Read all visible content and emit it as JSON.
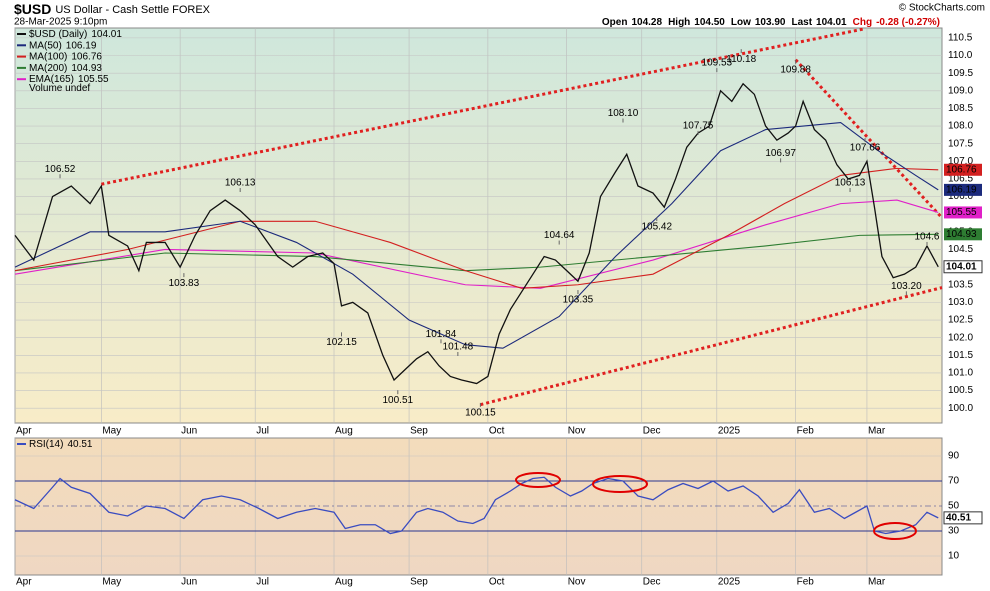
{
  "chart_data": [
    {
      "type": "line",
      "title": "$USD",
      "subtitle": "US Dollar - Cash Settle FOREX",
      "date": "28-Mar-2025 9:10pm",
      "source": "© StockCharts.com",
      "quote": [
        {
          "label": "Open",
          "value": "104.28"
        },
        {
          "label": "High",
          "value": "104.50"
        },
        {
          "label": "Low",
          "value": "103.90"
        },
        {
          "label": "Last",
          "value": "104.01"
        },
        {
          "label": "Chg",
          "value": "-0.28 (-0.27%)"
        }
      ],
      "volume_label": "Volume undef",
      "xlim": [
        0,
        247
      ],
      "xticks": [
        {
          "value": 0,
          "label": "Apr"
        },
        {
          "value": 23,
          "label": "May"
        },
        {
          "value": 44,
          "label": "Jun"
        },
        {
          "value": 64,
          "label": "Jul"
        },
        {
          "value": 85,
          "label": "Aug"
        },
        {
          "value": 105,
          "label": "Sep"
        },
        {
          "value": 126,
          "label": "Oct"
        },
        {
          "value": 147,
          "label": "Nov"
        },
        {
          "value": 167,
          "label": "Dec"
        },
        {
          "value": 187,
          "label": "2025"
        },
        {
          "value": 208,
          "label": "Feb"
        },
        {
          "value": 227,
          "label": "Mar"
        }
      ],
      "ylim": [
        99.58,
        110.78
      ],
      "yticks": [
        {
          "value": 100,
          "label": "100.0"
        },
        100.5,
        {
          "value": 101,
          "label": "101.0"
        },
        101.5,
        {
          "value": 102,
          "label": "102.0"
        },
        102.5,
        {
          "value": 103,
          "label": "103.0"
        },
        103.5,
        {
          "value": 104,
          "label": "104.0"
        },
        104.5,
        {
          "value": 105,
          "label": "105.0"
        },
        105.5,
        {
          "value": 106,
          "label": "106.0"
        },
        106.5,
        {
          "value": 107,
          "label": "107.0"
        },
        107.5,
        {
          "value": 108,
          "label": "108.0"
        },
        108.5,
        {
          "value": 109,
          "label": "109.0"
        },
        109.5,
        {
          "value": 110,
          "label": "110.0"
        },
        110.5
      ],
      "grid": true,
      "series": [
        {
          "name": "$USD (Daily)",
          "last": 104.01,
          "color": "#111111",
          "x": [
            0,
            5,
            10,
            15,
            20,
            23,
            25,
            30,
            33,
            35,
            40,
            44,
            48,
            52,
            56,
            60,
            64,
            66,
            70,
            74,
            78,
            82,
            85,
            87,
            90,
            94,
            98,
            101,
            104,
            107,
            110,
            113,
            116,
            119,
            123,
            126,
            129,
            132,
            135,
            138,
            141,
            144,
            147,
            150,
            153,
            156,
            160,
            163,
            166,
            170,
            173,
            176,
            179,
            182,
            185,
            188,
            191,
            194,
            197,
            200,
            203,
            206,
            208,
            210,
            213,
            216,
            219,
            222,
            225,
            227,
            229,
            231,
            234,
            237,
            240,
            243,
            246
          ],
          "values": [
            104.9,
            104.2,
            106.0,
            106.3,
            105.8,
            106.3,
            104.9,
            104.6,
            103.9,
            104.7,
            104.7,
            104.0,
            104.9,
            105.6,
            105.9,
            105.6,
            105.2,
            104.9,
            104.3,
            104.0,
            104.3,
            104.4,
            104.1,
            102.9,
            103.0,
            102.7,
            101.5,
            100.8,
            101.1,
            101.4,
            101.6,
            101.2,
            100.9,
            100.8,
            100.7,
            100.9,
            102.1,
            102.8,
            103.3,
            103.8,
            104.3,
            104.2,
            103.9,
            103.6,
            104.4,
            106.0,
            106.7,
            107.2,
            106.3,
            106.1,
            105.7,
            106.5,
            107.4,
            107.8,
            108.0,
            109.0,
            108.7,
            109.2,
            108.9,
            108.0,
            107.6,
            107.8,
            108.0,
            108.7,
            107.9,
            107.6,
            106.9,
            106.5,
            106.6,
            107.0,
            105.7,
            104.3,
            103.7,
            103.8,
            104.0,
            104.6,
            104.01
          ]
        },
        {
          "name": "MA(50)",
          "last": 106.19,
          "color": "#1c2a7c",
          "x": [
            0,
            20,
            40,
            60,
            75,
            90,
            105,
            120,
            130,
            145,
            160,
            175,
            188,
            200,
            210,
            220,
            230,
            240,
            246
          ],
          "values": [
            104.0,
            105.0,
            105.0,
            105.3,
            104.7,
            103.8,
            102.5,
            101.8,
            101.7,
            102.6,
            104.3,
            105.8,
            107.3,
            107.9,
            108.0,
            108.1,
            107.3,
            106.6,
            106.19
          ]
        },
        {
          "name": "MA(100)",
          "last": 106.76,
          "color": "#d32020",
          "x": [
            0,
            30,
            60,
            80,
            100,
            120,
            135,
            150,
            170,
            190,
            205,
            220,
            235,
            246
          ],
          "values": [
            103.9,
            104.5,
            105.3,
            105.3,
            104.7,
            103.9,
            103.4,
            103.5,
            103.8,
            104.9,
            105.8,
            106.6,
            106.8,
            106.76
          ]
        },
        {
          "name": "MA(200)",
          "last": 104.93,
          "color": "#2e7d32",
          "x": [
            0,
            40,
            80,
            120,
            140,
            170,
            200,
            225,
            246
          ],
          "values": [
            103.9,
            104.4,
            104.3,
            103.9,
            104.0,
            104.3,
            104.6,
            104.9,
            104.93
          ]
        },
        {
          "name": "EMA(165)",
          "last": 105.55,
          "color": "#e020c8",
          "x": [
            0,
            40,
            80,
            120,
            140,
            170,
            200,
            220,
            235,
            246
          ],
          "values": [
            103.8,
            104.5,
            104.4,
            103.5,
            103.4,
            104.2,
            105.2,
            105.8,
            105.9,
            105.55
          ]
        }
      ],
      "trendlines": [
        {
          "color": "#e02020",
          "x": [
            23,
            226
          ],
          "values": [
            106.35,
            110.75
          ]
        },
        {
          "color": "#e02020",
          "x": [
            124,
            247
          ],
          "values": [
            100.1,
            103.42
          ]
        },
        {
          "color": "#e02020",
          "x": [
            208,
            247
          ],
          "values": [
            109.88,
            105.4
          ]
        }
      ],
      "annotations": [
        {
          "x": 12,
          "value": 106.52
        },
        {
          "x": 45,
          "value": 103.83
        },
        {
          "x": 60,
          "value": 106.13
        },
        {
          "x": 87,
          "value": 102.15
        },
        {
          "x": 102,
          "value": 100.51
        },
        {
          "x": 113.5,
          "value": 101.84
        },
        {
          "x": 118,
          "value": 101.48
        },
        {
          "x": 124,
          "value": 100.15
        },
        {
          "x": 145,
          "value": 104.64
        },
        {
          "x": 150,
          "value": 103.35
        },
        {
          "x": 162,
          "value": 108.1,
          "label": "108.10"
        },
        {
          "x": 171,
          "value": 105.42
        },
        {
          "x": 187,
          "value": 109.53
        },
        {
          "x": 193.5,
          "value": 110.18
        },
        {
          "x": 182,
          "value": 107.75
        },
        {
          "x": 204,
          "value": 106.97
        },
        {
          "x": 208,
          "value": 109.88
        },
        {
          "x": 226.5,
          "value": 107.66
        },
        {
          "x": 222.5,
          "value": 106.13
        },
        {
          "x": 243,
          "value": 104.6
        },
        {
          "x": 237.5,
          "value": 103.2,
          "label": "103.20"
        }
      ]
    },
    {
      "type": "line",
      "xlim": [
        0,
        247
      ],
      "xticks": [
        {
          "value": 0,
          "label": "Apr"
        },
        {
          "value": 23,
          "label": "May"
        },
        {
          "value": 44,
          "label": "Jun"
        },
        {
          "value": 64,
          "label": "Jul"
        },
        {
          "value": 85,
          "label": "Aug"
        },
        {
          "value": 105,
          "label": "Sep"
        },
        {
          "value": 126,
          "label": "Oct"
        },
        {
          "value": 147,
          "label": "Nov"
        },
        {
          "value": 167,
          "label": "Dec"
        },
        {
          "value": 187,
          "label": "2025"
        },
        {
          "value": 208,
          "label": "Feb"
        },
        {
          "value": 227,
          "label": "Mar"
        }
      ],
      "ylim": [
        -5.2,
        104.4
      ],
      "yticks": [
        10,
        30,
        50,
        70,
        90
      ],
      "grid": true,
      "reference_lines": [
        30,
        70
      ],
      "midline": 50,
      "series": [
        {
          "name": "RSI(14)",
          "last": 40.51,
          "color": "#3a4cc0",
          "x": [
            0,
            5,
            10,
            12,
            15,
            20,
            25,
            30,
            35,
            40,
            45,
            50,
            55,
            60,
            65,
            70,
            75,
            80,
            85,
            88,
            92,
            96,
            100,
            103,
            107,
            110,
            114,
            118,
            122,
            125,
            128,
            132,
            135,
            138,
            141,
            144,
            148,
            151,
            154,
            158,
            162,
            166,
            170,
            174,
            178,
            182,
            186,
            190,
            194,
            198,
            202,
            206,
            209,
            213,
            217,
            221,
            224,
            227,
            229,
            232,
            236,
            240,
            243,
            246
          ],
          "values": [
            55,
            48,
            65,
            72,
            65,
            60,
            45,
            42,
            50,
            48,
            40,
            55,
            58,
            55,
            48,
            40,
            45,
            48,
            45,
            32,
            35,
            35,
            28,
            30,
            45,
            48,
            45,
            38,
            36,
            40,
            55,
            62,
            68,
            72,
            73,
            65,
            58,
            62,
            68,
            72,
            70,
            58,
            55,
            63,
            68,
            64,
            70,
            62,
            66,
            58,
            45,
            52,
            63,
            45,
            48,
            40,
            45,
            50,
            30,
            28,
            30,
            35,
            45,
            40.51
          ]
        }
      ]
    }
  ]
}
